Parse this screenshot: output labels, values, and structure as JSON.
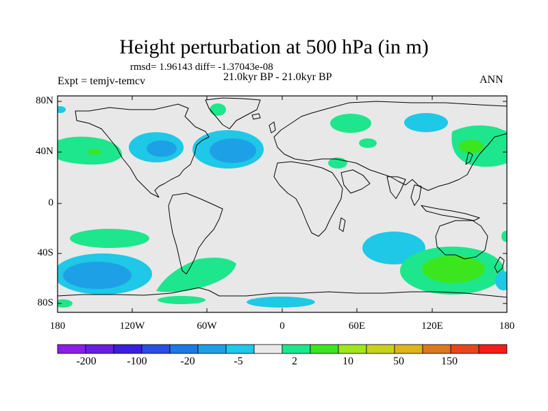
{
  "title": "Height perturbation at 500 hPa (in m)",
  "stats": "rmsd= 1.96143 diff= -1.37043e-08",
  "expt": "Expt = temjv-temcv",
  "period": "21.0kyr BP - 21.0kyr BP",
  "season": "ANN",
  "lat_labels": [
    "80N",
    "40N",
    "0",
    "40S",
    "80S"
  ],
  "lon_labels": [
    "180",
    "120W",
    "60W",
    "0",
    "60E",
    "120E",
    "180"
  ],
  "colorbar": {
    "labels": [
      "-200",
      "-100",
      "-20",
      "-5",
      "2",
      "10",
      "50",
      "150"
    ],
    "colors": [
      "#8a1ee6",
      "#6a1ee0",
      "#3a1edc",
      "#2a4ee0",
      "#1e78e6",
      "#1ea0e6",
      "#1ec8e6",
      "#e8e8e8",
      "#1ee68c",
      "#3ce61e",
      "#a0e61e",
      "#c8d21e",
      "#dcb41e",
      "#dc781e",
      "#e6461e",
      "#f01e1e"
    ]
  },
  "colors": {
    "background": "#e8e8e8",
    "neg_light": "#1ec8e6",
    "neg_mid": "#1ea0e6",
    "neg_deep": "#1e78e6",
    "pos_light": "#1ee68c",
    "pos_mid": "#3ce61e"
  }
}
